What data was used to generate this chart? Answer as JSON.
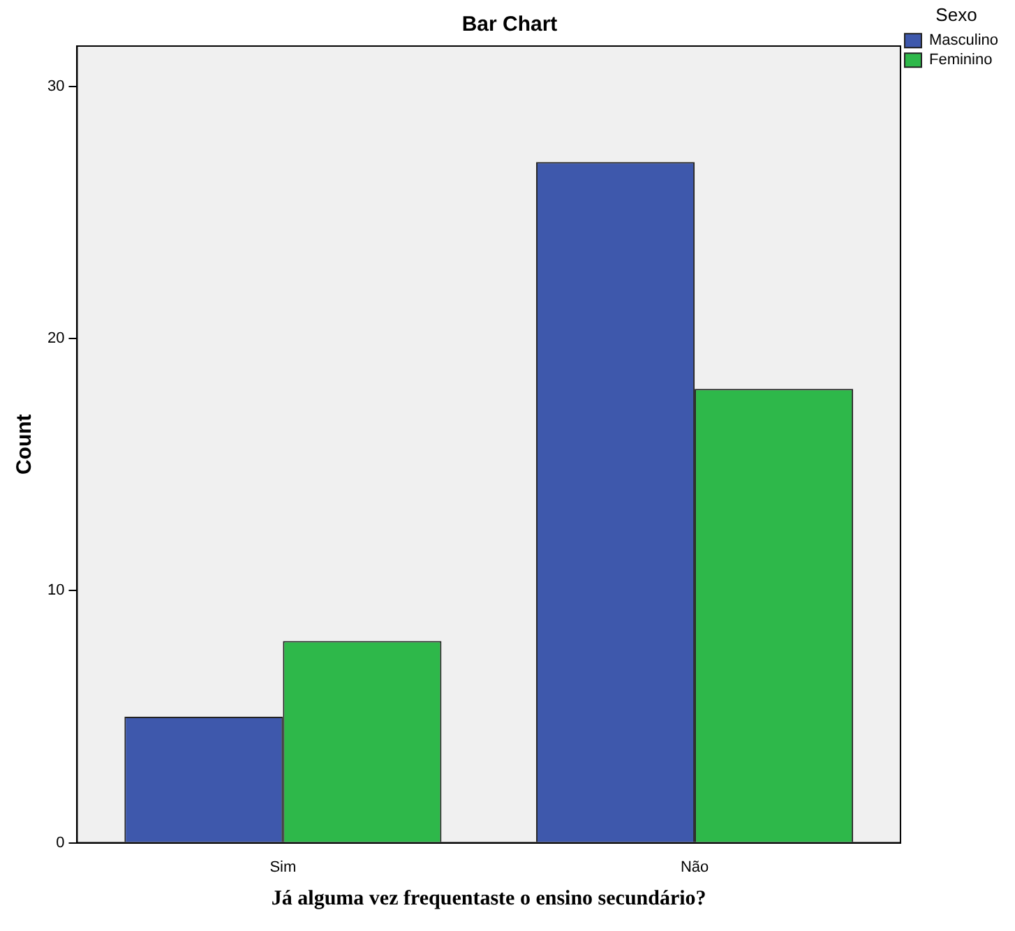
{
  "chart_data": {
    "type": "bar",
    "title": "Bar Chart",
    "xlabel": "Já alguma vez frequentaste o ensino secundário?",
    "ylabel": "Count",
    "legend_title": "Sexo",
    "legend": "top right",
    "categories": [
      "Sim",
      "Não"
    ],
    "series": [
      {
        "name": "Masculino",
        "color": "#3e58ac",
        "values": [
          5,
          27
        ]
      },
      {
        "name": "Feminino",
        "color": "#2eb84a",
        "values": [
          8,
          18
        ]
      }
    ],
    "ylim": [
      0,
      31.6
    ],
    "yticks": [
      0,
      10,
      20,
      30
    ]
  }
}
